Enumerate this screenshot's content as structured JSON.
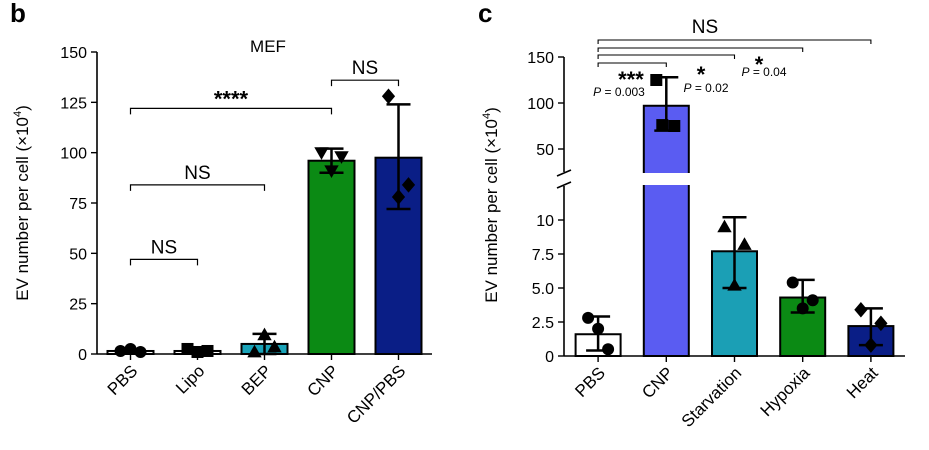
{
  "chart_data": [
    {
      "panel": "b",
      "type": "bar",
      "title": "MEF",
      "xlabel": "",
      "ylabel": "EV number per cell (×10⁴)",
      "ylim": [
        0,
        150
      ],
      "yticks": [
        "0",
        "25",
        "50",
        "75",
        "100",
        "125",
        "150"
      ],
      "categories": [
        "PBS",
        "Lipo",
        "BEP",
        "CNP",
        "CNP/PBS"
      ],
      "values": [
        1.5,
        1.5,
        5,
        96,
        97.5
      ],
      "error": [
        [
          0.5,
          2.5
        ],
        [
          0.5,
          2.5
        ],
        [
          0,
          10
        ],
        [
          90,
          102
        ],
        [
          72,
          124
        ]
      ],
      "colors": [
        "#ffffff",
        "#ffffff",
        "#1aa3b8",
        "#0b8a14",
        "#0a1e86"
      ],
      "markers": [
        "circle",
        "square",
        "triangle-up",
        "triangle-down",
        "diamond"
      ],
      "points": [
        [
          1.5,
          2.5,
          1.0
        ],
        [
          2.5,
          1.0,
          1.5
        ],
        [
          1.0,
          9.5,
          3.5
        ],
        [
          100,
          91,
          98
        ],
        [
          128,
          78,
          84
        ]
      ],
      "significance": [
        {
          "from": 0,
          "to": 1,
          "y": 47,
          "label": "NS"
        },
        {
          "from": 0,
          "to": 2,
          "y": 84,
          "label": "NS"
        },
        {
          "from": 0,
          "to": 3,
          "y": 122,
          "label": "****"
        },
        {
          "from": 3,
          "to": 4,
          "y": 136,
          "label": "NS"
        }
      ],
      "grid": false,
      "legend": "none"
    },
    {
      "panel": "c",
      "type": "bar",
      "xlabel": "",
      "ylabel": "EV number per cell (×10⁴)",
      "broken_axis": {
        "lower": [
          0,
          12.5
        ],
        "upper": [
          25,
          150
        ]
      },
      "yticks_lower": [
        "0",
        "2.5",
        "5.0",
        "7.5",
        "10"
      ],
      "yticks_upper": [
        "50",
        "100",
        "150"
      ],
      "categories": [
        "PBS",
        "CNP",
        "Starvation",
        "Hypoxia",
        "Heat"
      ],
      "values": [
        1.6,
        97,
        7.7,
        4.3,
        2.2
      ],
      "error": [
        [
          0.4,
          2.9
        ],
        [
          70,
          128
        ],
        [
          5.0,
          10.2
        ],
        [
          3.2,
          5.6
        ],
        [
          0.8,
          3.5
        ]
      ],
      "colors": [
        "#ffffff",
        "#5a5cf2",
        "#1b9fb5",
        "#0b8a14",
        "#0a1e86"
      ],
      "markers": [
        "circle",
        "square",
        "triangle-up",
        "circle",
        "diamond"
      ],
      "points": [
        [
          2.8,
          2.0,
          0.5
        ],
        [
          125,
          76,
          75
        ],
        [
          9.5,
          5.2,
          8.2
        ],
        [
          5.4,
          3.5,
          4.1
        ],
        [
          3.4,
          0.8,
          2.4
        ]
      ],
      "significance": [
        {
          "from": 0,
          "to": 1,
          "label": "***",
          "p": "P = 0.003"
        },
        {
          "from": 0,
          "to": 2,
          "label": "*",
          "p": "P = 0.02"
        },
        {
          "from": 0,
          "to": 3,
          "label": "*",
          "p": "P = 0.04"
        },
        {
          "from": 0,
          "to": 4,
          "label": "NS",
          "p": ""
        }
      ],
      "grid": false,
      "legend": "none"
    }
  ]
}
